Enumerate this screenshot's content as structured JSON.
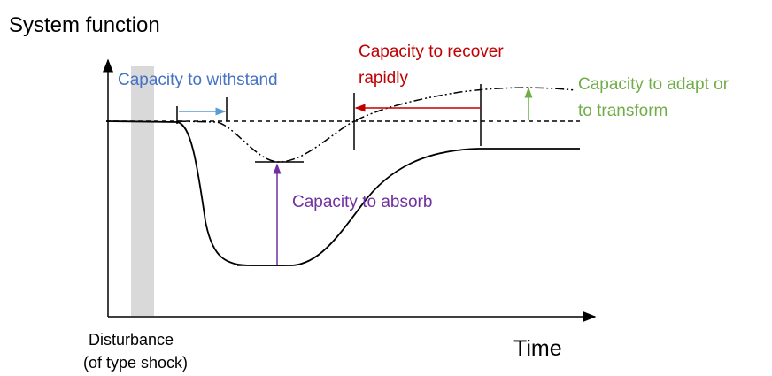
{
  "y_axis_label": "System function",
  "x_axis_label": "Time",
  "disturbance": {
    "line1": "Disturbance",
    "line2": "(of type shock)"
  },
  "annotations": {
    "withstand": "Capacity to withstand",
    "recover": {
      "line1": "Capacity to recover",
      "line2": "rapidly"
    },
    "adapt": {
      "line1": "Capacity to adapt or",
      "line2": "to transform"
    },
    "absorb": "Capacity to absorb"
  }
}
